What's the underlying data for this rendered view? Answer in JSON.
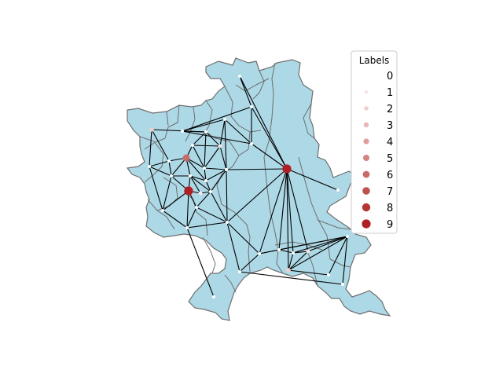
{
  "map": {
    "region_fill": "#add8e6",
    "border_color": "#6e6e6e",
    "edge_color": "#000000"
  },
  "legend": {
    "title": "Labels",
    "entries": [
      {
        "label": "0",
        "color": "#ffffff"
      },
      {
        "label": "1",
        "color": "#f7e6e6"
      },
      {
        "label": "2",
        "color": "#f0d0cf"
      },
      {
        "label": "3",
        "color": "#e8b7b6"
      },
      {
        "label": "4",
        "color": "#dd9e9c"
      },
      {
        "label": "5",
        "color": "#d48582"
      },
      {
        "label": "6",
        "color": "#c96b68"
      },
      {
        "label": "7",
        "color": "#bf514e"
      },
      {
        "label": "8",
        "color": "#b53634"
      },
      {
        "label": "9",
        "color": "#b01f24"
      }
    ]
  },
  "graph": {
    "nodes": [
      {
        "id": "n0",
        "label": 0
      },
      {
        "id": "n1",
        "label": 0
      },
      {
        "id": "n2",
        "label": 2
      },
      {
        "id": "n3",
        "label": 0
      },
      {
        "id": "n4",
        "label": 0
      },
      {
        "id": "n5",
        "label": 0
      },
      {
        "id": "n6",
        "label": 1
      },
      {
        "id": "n7",
        "label": 0
      },
      {
        "id": "n8",
        "label": 0
      },
      {
        "id": "n9",
        "label": 0
      },
      {
        "id": "n10",
        "label": 0
      },
      {
        "id": "n11",
        "label": 6
      },
      {
        "id": "n12",
        "label": 0
      },
      {
        "id": "n13",
        "label": 0
      },
      {
        "id": "n14",
        "label": 9
      },
      {
        "id": "n15",
        "label": 0
      },
      {
        "id": "n16",
        "label": 0
      },
      {
        "id": "n17",
        "label": 0
      },
      {
        "id": "n18",
        "label": 0
      },
      {
        "id": "n19",
        "label": 9
      },
      {
        "id": "n20",
        "label": 0
      },
      {
        "id": "n21",
        "label": 1
      },
      {
        "id": "n22",
        "label": 0
      },
      {
        "id": "n23",
        "label": 0
      },
      {
        "id": "n24",
        "label": 0
      },
      {
        "id": "n25",
        "label": 0
      },
      {
        "id": "n26",
        "label": 0
      },
      {
        "id": "n27",
        "label": 0
      },
      {
        "id": "n28",
        "label": 0
      },
      {
        "id": "n29",
        "label": 0
      },
      {
        "id": "n30",
        "label": 0
      },
      {
        "id": "n31",
        "label": 1
      },
      {
        "id": "n32",
        "label": 0
      },
      {
        "id": "n33",
        "label": 2
      },
      {
        "id": "n34",
        "label": 0
      },
      {
        "id": "n35",
        "label": 0
      }
    ],
    "edges": [
      [
        "n0",
        "n1"
      ],
      [
        "n0",
        "n14"
      ],
      [
        "n1",
        "n3"
      ],
      [
        "n1",
        "n8"
      ],
      [
        "n1",
        "n14"
      ],
      [
        "n2",
        "n4"
      ],
      [
        "n2",
        "n9"
      ],
      [
        "n2",
        "n10"
      ],
      [
        "n3",
        "n4"
      ],
      [
        "n3",
        "n8"
      ],
      [
        "n3",
        "n7"
      ],
      [
        "n4",
        "n5"
      ],
      [
        "n4",
        "n6"
      ],
      [
        "n4",
        "n12"
      ],
      [
        "n5",
        "n6"
      ],
      [
        "n5",
        "n11"
      ],
      [
        "n5",
        "n12"
      ],
      [
        "n6",
        "n7"
      ],
      [
        "n6",
        "n12"
      ],
      [
        "n6",
        "n13"
      ],
      [
        "n7",
        "n8"
      ],
      [
        "n7",
        "n13"
      ],
      [
        "n8",
        "n14"
      ],
      [
        "n9",
        "n10"
      ],
      [
        "n9",
        "n16"
      ],
      [
        "n9",
        "n20"
      ],
      [
        "n10",
        "n11"
      ],
      [
        "n10",
        "n16"
      ],
      [
        "n11",
        "n12"
      ],
      [
        "n11",
        "n16"
      ],
      [
        "n11",
        "n17"
      ],
      [
        "n11",
        "n18"
      ],
      [
        "n12",
        "n13"
      ],
      [
        "n12",
        "n18"
      ],
      [
        "n13",
        "n14"
      ],
      [
        "n13",
        "n18"
      ],
      [
        "n13",
        "n22"
      ],
      [
        "n13",
        "n25"
      ],
      [
        "n14",
        "n15"
      ],
      [
        "n14",
        "n25"
      ],
      [
        "n14",
        "n27"
      ],
      [
        "n14",
        "n29"
      ],
      [
        "n14",
        "n30"
      ],
      [
        "n14",
        "n31"
      ],
      [
        "n14",
        "n33"
      ],
      [
        "n16",
        "n17"
      ],
      [
        "n16",
        "n19"
      ],
      [
        "n16",
        "n20"
      ],
      [
        "n17",
        "n18"
      ],
      [
        "n17",
        "n19"
      ],
      [
        "n17",
        "n21"
      ],
      [
        "n17",
        "n22"
      ],
      [
        "n18",
        "n22"
      ],
      [
        "n19",
        "n20"
      ],
      [
        "n19",
        "n21"
      ],
      [
        "n19",
        "n23"
      ],
      [
        "n19",
        "n24"
      ],
      [
        "n20",
        "n24"
      ],
      [
        "n21",
        "n22"
      ],
      [
        "n22",
        "n23"
      ],
      [
        "n22",
        "n25"
      ],
      [
        "n23",
        "n24"
      ],
      [
        "n23",
        "n25"
      ],
      [
        "n24",
        "n25"
      ],
      [
        "n24",
        "n26"
      ],
      [
        "n25",
        "n27"
      ],
      [
        "n25",
        "n28"
      ],
      [
        "n27",
        "n28"
      ],
      [
        "n27",
        "n29"
      ],
      [
        "n27",
        "n34"
      ],
      [
        "n28",
        "n32"
      ],
      [
        "n29",
        "n30"
      ],
      [
        "n29",
        "n34"
      ],
      [
        "n30",
        "n31"
      ],
      [
        "n30",
        "n33"
      ],
      [
        "n30",
        "n34"
      ],
      [
        "n31",
        "n34"
      ],
      [
        "n31",
        "n33"
      ],
      [
        "n32",
        "n34"
      ],
      [
        "n33",
        "n35"
      ],
      [
        "n33",
        "n34"
      ],
      [
        "n34",
        "n35"
      ]
    ]
  }
}
